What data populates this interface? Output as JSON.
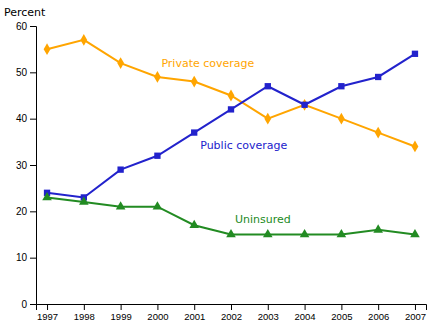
{
  "chart_data": {
    "type": "line",
    "ylabel": "Percent",
    "x": [
      1997,
      1998,
      1999,
      2000,
      2001,
      2002,
      2003,
      2004,
      2005,
      2006,
      2007
    ],
    "series": [
      {
        "name": "Private coverage",
        "color": "#FFA500",
        "marker": "diamond",
        "values": [
          55,
          57,
          52,
          49,
          48,
          45,
          40,
          43,
          40,
          37,
          34
        ]
      },
      {
        "name": "Public coverage",
        "color": "#2222CC",
        "marker": "square",
        "values": [
          24,
          23,
          29,
          32,
          37,
          42,
          47,
          43,
          47,
          49,
          54
        ]
      },
      {
        "name": "Uninsured",
        "color": "#228B22",
        "marker": "triangle",
        "values": [
          23,
          22,
          21,
          21,
          17,
          15,
          15,
          15,
          15,
          16,
          15
        ]
      }
    ],
    "xlim": [
      1996.7,
      2007.3
    ],
    "xticks": [
      1997,
      1998,
      1999,
      2000,
      2001,
      2002,
      2003,
      2004,
      2005,
      2006,
      2007
    ],
    "ylim": [
      0,
      60
    ],
    "yticks": [
      0,
      10,
      20,
      30,
      40,
      50,
      60
    ],
    "grid": false
  }
}
